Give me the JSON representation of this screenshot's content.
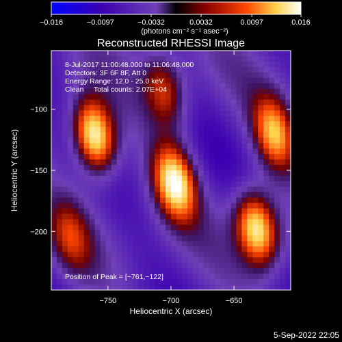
{
  "chart_data": {
    "type": "heatmap",
    "title": "Reconstructed RHESSI Image",
    "xlabel": "Heliocentric X (arcsec)",
    "ylabel": "Heliocentric Y (arcsec)",
    "xlim": [
      -795,
      -605
    ],
    "ylim": [
      -248,
      -52
    ],
    "x_ticks": [
      -750,
      -700,
      -650
    ],
    "x_tick_labels": [
      "−750",
      "−700",
      "−650"
    ],
    "y_ticks": [
      -100,
      -150,
      -200
    ],
    "y_tick_labels": [
      "−100",
      "−150",
      "−200"
    ],
    "colorbar": {
      "range": [
        -0.016,
        0.016
      ],
      "ticks": [
        -0.016,
        -0.0097,
        -0.0032,
        0.0032,
        0.0097,
        0.016
      ],
      "tick_labels": [
        "−0.016",
        "−0.0097",
        "−0.0032",
        "0.0032",
        "0.0097",
        "0.016"
      ],
      "unit_label": "(photons cm⁻² s⁻¹ asec⁻²)",
      "colors": [
        "#0000ff",
        "#3a00b0",
        "#7a40c0",
        "#000000",
        "#8b0000",
        "#ff4500",
        "#ffd24a",
        "#ffffff"
      ]
    },
    "annotations": [
      "8-Jul-2017 11:00:48.000 to 11:06:48.000",
      "Detectors: 3F 6F 8F, Att 0",
      "Energy Range: 12.0 - 25.0 keV",
      "Clean     Total counts: 2.07E+04"
    ],
    "peak_label": "Position of Peak = [−761,−122]",
    "peak": {
      "x": -761,
      "y": -122
    },
    "sources": [
      {
        "x": -761,
        "y": -122,
        "amplitude": 0.016
      },
      {
        "x": -697,
        "y": -160,
        "amplitude": 0.014
      },
      {
        "x": -632,
        "y": -198,
        "amplitude": 0.0145
      },
      {
        "x": -618,
        "y": -120,
        "amplitude": 0.011
      },
      {
        "x": -705,
        "y": -85,
        "amplitude": 0.008
      },
      {
        "x": -780,
        "y": -205,
        "amplitude": 0.006
      }
    ],
    "grid": false
  },
  "footer": {
    "date": "5-Sep-2022 22:05"
  }
}
